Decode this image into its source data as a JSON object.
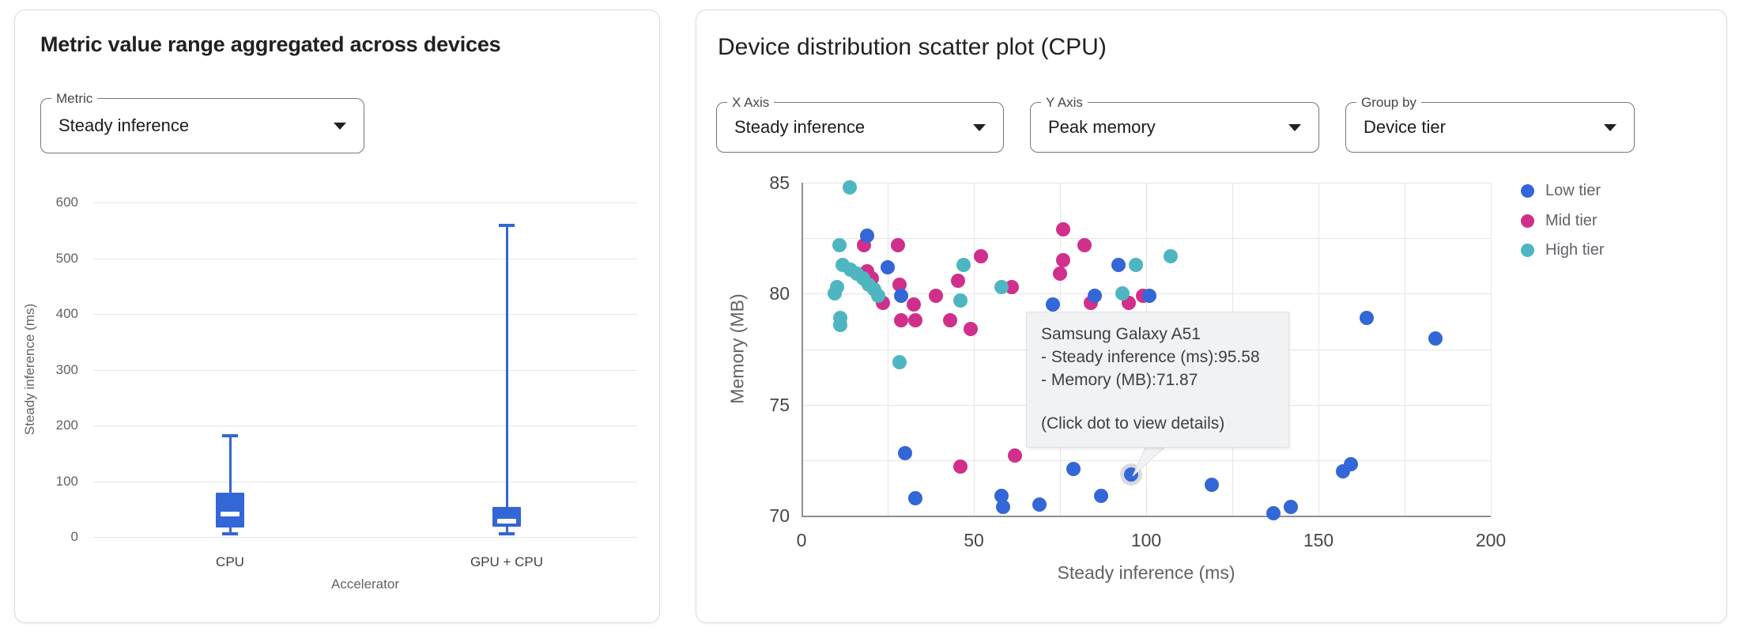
{
  "left_panel": {
    "title": "Metric value range aggregated across devices",
    "metric_select": {
      "label": "Metric",
      "value": "Steady inference"
    }
  },
  "right_panel": {
    "title": "Device distribution scatter plot (CPU)",
    "selects": [
      {
        "label": "X Axis",
        "value": "Steady inference"
      },
      {
        "label": "Y Axis",
        "value": "Peak memory"
      },
      {
        "label": "Group by",
        "value": "Device tier"
      }
    ],
    "tooltip": {
      "title": "Samsung Galaxy A51",
      "lines": [
        "- Steady inference (ms):95.58",
        "- Memory (MB):71.87"
      ],
      "hint": "(Click dot to view details)"
    }
  },
  "chart_data": [
    {
      "type": "box",
      "title": "Metric value range aggregated across devices",
      "xlabel": "Accelerator",
      "ylabel": "Steady inference (ms)",
      "categories": [
        "CPU",
        "GPU + CPU"
      ],
      "ylim": [
        0,
        600
      ],
      "yticks": [
        0,
        100,
        200,
        300,
        400,
        500,
        600
      ],
      "grid": true,
      "color": "#3366d6",
      "boxes": [
        {
          "category": "CPU",
          "min": 7,
          "q1": 17,
          "median": 41,
          "q3": 80,
          "max": 182
        },
        {
          "category": "GPU + CPU",
          "min": 7,
          "q1": 18,
          "median": 28,
          "q3": 54,
          "max": 560
        }
      ]
    },
    {
      "type": "scatter",
      "title": "Device distribution scatter plot (CPU)",
      "xlabel": "Steady inference (ms)",
      "ylabel": "Memory (MB)",
      "xlim": [
        0,
        200
      ],
      "ylim": [
        70,
        85
      ],
      "xticks": [
        0,
        50,
        100,
        150,
        200
      ],
      "yticks": [
        70,
        75,
        80,
        85
      ],
      "minor_grid_x": 25,
      "minor_grid_y": 2.5,
      "grid": true,
      "legend_position": "right",
      "series": [
        {
          "name": "Mid tier",
          "color": "#d02f8c",
          "points": [
            [
              18,
              82.2
            ],
            [
              28,
              82.2
            ],
            [
              19,
              81
            ],
            [
              20.5,
              80.7
            ],
            [
              23.5,
              79.6
            ],
            [
              28.5,
              80.4
            ],
            [
              32.5,
              79.5
            ],
            [
              29,
              78.8
            ],
            [
              33,
              78.8
            ],
            [
              39,
              79.9
            ],
            [
              45.5,
              80.6
            ],
            [
              52,
              81.7
            ],
            [
              43,
              78.8
            ],
            [
              49,
              78.4
            ],
            [
              61,
              80.3
            ],
            [
              76,
              82.9
            ],
            [
              82,
              82.2
            ],
            [
              76,
              81.5
            ],
            [
              75,
              80.9
            ],
            [
              84,
              79.6
            ],
            [
              95,
              79.6
            ],
            [
              99,
              79.9
            ],
            [
              46,
              72.2
            ],
            [
              62,
              72.7
            ]
          ]
        },
        {
          "name": "High tier",
          "color": "#4db6c1",
          "points": [
            [
              14,
              84.8
            ],
            [
              11,
              82.2
            ],
            [
              12,
              81.3
            ],
            [
              14.3,
              81.1
            ],
            [
              16,
              80.9
            ],
            [
              17.8,
              80.7
            ],
            [
              19.5,
              80.4
            ],
            [
              21,
              80.2
            ],
            [
              22.3,
              79.9
            ],
            [
              10.4,
              80.3
            ],
            [
              9.6,
              80
            ],
            [
              11.2,
              78.9
            ],
            [
              11.3,
              78.6
            ],
            [
              47,
              81.3
            ],
            [
              46,
              79.7
            ],
            [
              58,
              80.3
            ],
            [
              28.4,
              76.9
            ],
            [
              93,
              80
            ],
            [
              97,
              81.3
            ],
            [
              107,
              81.7
            ]
          ]
        },
        {
          "name": "Low tier",
          "color": "#3366d6",
          "points": [
            [
              19,
              82.6
            ],
            [
              25,
              81.2
            ],
            [
              29,
              79.9
            ],
            [
              73,
              79.5
            ],
            [
              85,
              79.9
            ],
            [
              92,
              81.3
            ],
            [
              101,
              79.9
            ],
            [
              164,
              78.9
            ],
            [
              184,
              78
            ],
            [
              30,
              72.8
            ],
            [
              33,
              70.8
            ],
            [
              58,
              70.9
            ],
            [
              58.5,
              70.4
            ],
            [
              69,
              70.5
            ],
            [
              79,
              72.1
            ],
            [
              87,
              70.9
            ],
            [
              95.58,
              71.87
            ],
            [
              119,
              71.4
            ],
            [
              137,
              70.1
            ],
            [
              142,
              70.4
            ],
            [
              157,
              72
            ],
            [
              159.5,
              72.3
            ]
          ]
        }
      ],
      "legend_order": [
        "Low tier",
        "Mid tier",
        "High tier"
      ],
      "highlight_point": {
        "series": "Low tier",
        "x": 95.58,
        "y": 71.87
      }
    }
  ]
}
